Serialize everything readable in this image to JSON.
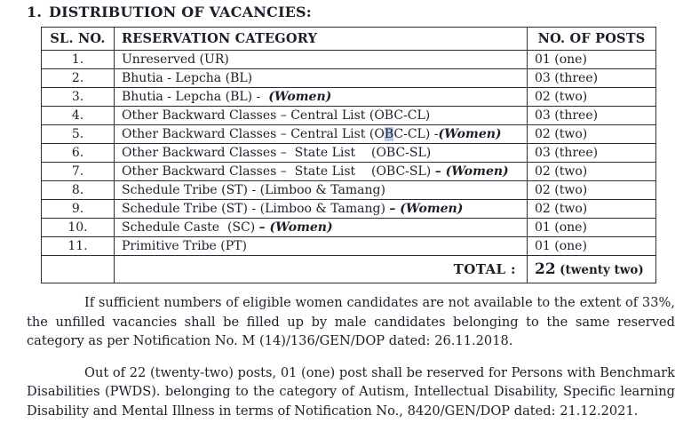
{
  "title": {
    "number": "1.",
    "text": "DISTRIBUTION OF VACANCIES:"
  },
  "table": {
    "headers": [
      "SL. NO.",
      "RESERVATION CATEGORY",
      "NO. OF POSTS"
    ],
    "rows": [
      {
        "sl": "1.",
        "category": [
          {
            "t": "Unreserved (UR)"
          }
        ],
        "posts": "01 (one)"
      },
      {
        "sl": "2.",
        "category": [
          {
            "t": "Bhutia - Lepcha (BL)"
          }
        ],
        "posts": "03 (three)"
      },
      {
        "sl": "3.",
        "category": [
          {
            "t": "Bhutia - Lepcha (BL) -  "
          },
          {
            "t": "(Women)",
            "em": true
          }
        ],
        "posts": "02 (two)"
      },
      {
        "sl": "4.",
        "category": [
          {
            "t": "Other Backward Classes – Central List (OBC-CL)"
          }
        ],
        "posts": "03 (three)"
      },
      {
        "sl": "5.",
        "category": [
          {
            "t": "Other Backward Classes – Central List (O"
          },
          {
            "t": "B",
            "hl": true
          },
          {
            "t": "C-CL) -"
          },
          {
            "t": "(Women)",
            "em": true
          }
        ],
        "posts": "02 (two)"
      },
      {
        "sl": "6.",
        "category": [
          {
            "t": "Other Backward Classes –  State List    (OBC-SL)"
          }
        ],
        "posts": "03 (three)"
      },
      {
        "sl": "7.",
        "category": [
          {
            "t": "Other Backward Classes –  State List    (OBC-SL) "
          },
          {
            "t": "– (Women)",
            "em": true
          }
        ],
        "posts": "02 (two)"
      },
      {
        "sl": "8.",
        "category": [
          {
            "t": "Schedule Tribe (ST) - (Limboo & Tamang)"
          }
        ],
        "posts": "02 (two)"
      },
      {
        "sl": "9.",
        "category": [
          {
            "t": "Schedule Tribe (ST) - (Limboo & Tamang) "
          },
          {
            "t": "– (Women)",
            "em": true
          }
        ],
        "posts": "02 (two)"
      },
      {
        "sl": "10.",
        "category": [
          {
            "t": "Schedule Caste  (SC) "
          },
          {
            "t": "– (Women)",
            "em": true
          }
        ],
        "posts": "01 (one)"
      },
      {
        "sl": "11.",
        "category": [
          {
            "t": "Primitive Tribe (PT)"
          }
        ],
        "posts": "01 (one)"
      }
    ],
    "total": {
      "label": "TOTAL :",
      "value_number": "22",
      "value_words": "(twenty two)"
    }
  },
  "paragraphs": [
    "If sufficient numbers of eligible women candidates are not available to the extent of 33%, the unfilled vacancies shall be filled up by male candidates belonging to the same reserved category as per Notification No. M (14)/136/GEN/DOP dated: 26.11.2018.",
    "Out of 22 (twenty-two) posts, 01 (one) post shall be reserved for Persons with Benchmark Disabilities (PWDS). belonging to the category of Autism, Intellectual Disability, Specific learning Disability and Mental Illness in terms of Notification No., 8420/GEN/DOP dated: 21.12.2021."
  ],
  "colors": {
    "text": "#1e1e2b",
    "table_border": "#2c2c35",
    "selection_highlight": "#b7cde8"
  }
}
